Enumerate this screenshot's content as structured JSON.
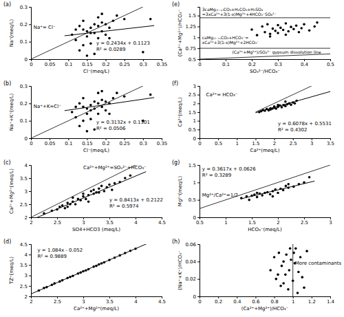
{
  "chart_data": [
    {
      "type": "scatter",
      "title": "(a)",
      "x_label": "Cl⁻(meq/L)",
      "y_label": "Na⁺(meq/L)",
      "color": "#000000",
      "marker": "circle",
      "xlim": [
        0,
        0.35
      ],
      "xticks": [
        0,
        0.05,
        0.1,
        0.15,
        0.2,
        0.25,
        0.3,
        0.35
      ],
      "ylim": [
        0,
        0.3
      ],
      "yticks": [
        0,
        0.1,
        0.2,
        0.3
      ],
      "x": [
        0.11,
        0.12,
        0.13,
        0.13,
        0.14,
        0.14,
        0.15,
        0.15,
        0.16,
        0.16,
        0.17,
        0.17,
        0.18,
        0.18,
        0.19,
        0.19,
        0.2,
        0.2,
        0.21,
        0.22,
        0.23,
        0.12,
        0.14,
        0.16,
        0.17,
        0.19,
        0.21,
        0.25,
        0.3,
        0.32,
        0.15,
        0.18
      ],
      "values": [
        0.14,
        0.11,
        0.19,
        0.05,
        0.17,
        0.22,
        0.13,
        0.02,
        0.18,
        0.09,
        0.2,
        0.15,
        0.24,
        0.12,
        0.16,
        0.26,
        0.14,
        0.2,
        0.18,
        0.22,
        0.25,
        0.17,
        0.08,
        0.15,
        0.03,
        0.21,
        0.12,
        0.23,
        0.04,
        0.23,
        0.16,
        0.19
      ],
      "fit": {
        "slope": 0.2434,
        "intercept": 0.1123,
        "xrange": [
          0.09,
          0.33
        ],
        "equation": "y = 0.2434x + 0.1123",
        "r2": "R² = 0.0289"
      },
      "reference_lines": [
        {
          "label": [
            "Na⁺= Cl⁻"
          ],
          "x": [
            0,
            0.3
          ],
          "y": [
            0,
            0.3
          ]
        }
      ]
    },
    {
      "type": "scatter",
      "title": "(b)",
      "x_label": "Cl⁻(meq/L)",
      "y_label": "Na⁺+K⁺(meq/L)",
      "color": "#000000",
      "marker": "circle",
      "xlim": [
        0,
        0.35
      ],
      "xticks": [
        0,
        0.05,
        0.1,
        0.15,
        0.2,
        0.25,
        0.3,
        0.35
      ],
      "ylim": [
        0,
        0.3
      ],
      "yticks": [
        0,
        0.1,
        0.2,
        0.3
      ],
      "x": [
        0.11,
        0.12,
        0.13,
        0.13,
        0.14,
        0.14,
        0.15,
        0.15,
        0.16,
        0.16,
        0.17,
        0.17,
        0.18,
        0.18,
        0.19,
        0.19,
        0.2,
        0.2,
        0.21,
        0.22,
        0.23,
        0.12,
        0.14,
        0.16,
        0.17,
        0.19,
        0.21,
        0.25,
        0.3,
        0.32,
        0.15,
        0.18
      ],
      "values": [
        0.15,
        0.12,
        0.2,
        0.07,
        0.18,
        0.23,
        0.14,
        0.04,
        0.19,
        0.11,
        0.21,
        0.17,
        0.26,
        0.14,
        0.18,
        0.27,
        0.16,
        0.21,
        0.2,
        0.23,
        0.26,
        0.18,
        0.1,
        0.16,
        0.05,
        0.22,
        0.14,
        0.24,
        0.1,
        0.25,
        0.17,
        0.2
      ],
      "fit": {
        "slope": 0.3132,
        "intercept": 0.1301,
        "xrange": [
          0.09,
          0.33
        ],
        "equation": "y = 0.3132x + 0.1301",
        "r2": "R² = 0.0506"
      },
      "reference_lines": [
        {
          "label": [
            "Na⁺+K=Cl⁻"
          ],
          "x": [
            0,
            0.3
          ],
          "y": [
            0,
            0.3
          ]
        }
      ]
    },
    {
      "type": "scatter",
      "title": "(c)",
      "x_label": "SO4+HCO3 (meq/L)",
      "y_label": "Ca²⁺+Mg²⁺(meq/L)",
      "color": "#000000",
      "marker": "circle",
      "xlim": [
        2,
        4.5
      ],
      "xticks": [
        2,
        2.5,
        3,
        3.5,
        4,
        4.5
      ],
      "ylim": [
        2,
        4
      ],
      "yticks": [
        2,
        2.5,
        3,
        3.5,
        4
      ],
      "x": [
        2.25,
        2.4,
        2.5,
        2.55,
        2.6,
        2.65,
        2.7,
        2.75,
        2.8,
        2.8,
        2.85,
        2.9,
        2.95,
        3.0,
        3.0,
        3.05,
        3.1,
        3.15,
        3.2,
        3.2,
        3.25,
        3.3,
        3.35,
        3.4,
        3.45,
        3.5,
        3.55,
        3.6,
        3.7,
        3.8,
        3.9,
        2.7,
        3.1,
        3.3
      ],
      "values": [
        2.15,
        2.25,
        2.3,
        2.4,
        2.45,
        2.35,
        2.55,
        2.5,
        2.6,
        2.75,
        2.5,
        2.7,
        2.65,
        2.8,
        2.9,
        2.7,
        2.85,
        3.0,
        2.9,
        3.05,
        2.95,
        3.1,
        3.2,
        3.0,
        3.15,
        3.25,
        3.05,
        3.3,
        3.35,
        3.5,
        3.6,
        2.4,
        2.6,
        2.95
      ],
      "fit": {
        "slope": 0.8413,
        "intercept": 0.2122,
        "xrange": [
          2,
          4.2
        ],
        "equation": "y = 0.8413x + 0.2122",
        "r2": "R² = 0.5974"
      },
      "reference_lines": [
        {
          "label": [
            "Ca²⁺+Mg²⁺=SO₄²⁻+HCO₃⁻"
          ],
          "x": [
            2,
            4
          ],
          "y": [
            2,
            4
          ]
        }
      ]
    },
    {
      "type": "scatter",
      "title": "(d)",
      "x_label": "Ca²⁺+Mg²⁺(meq/L)",
      "y_label": "TZ⁺(meq/L)",
      "color": "#000000",
      "marker": "circle",
      "xlim": [
        2,
        4.5
      ],
      "xticks": [
        2,
        2.5,
        3,
        3.5,
        4,
        4.5
      ],
      "ylim": [
        2,
        4.5
      ],
      "yticks": [
        2,
        2.5,
        3,
        3.5,
        4,
        4.5
      ],
      "x": [
        2.15,
        2.25,
        2.3,
        2.4,
        2.45,
        2.55,
        2.6,
        2.7,
        2.75,
        2.8,
        2.9,
        2.95,
        3.0,
        3.05,
        3.1,
        3.2,
        3.25,
        3.3,
        3.35,
        3.4,
        3.5,
        3.6,
        3.7,
        3.8,
        3.9,
        4.0
      ],
      "values": [
        2.28,
        2.4,
        2.44,
        2.55,
        2.62,
        2.71,
        2.77,
        2.88,
        2.93,
        2.98,
        3.09,
        3.14,
        3.2,
        3.24,
        3.3,
        3.42,
        3.46,
        3.53,
        3.58,
        3.63,
        3.74,
        3.85,
        3.96,
        4.07,
        4.18,
        4.28
      ],
      "fit": {
        "slope": 1.084,
        "intercept": -0.052,
        "xrange": [
          2,
          4.4
        ],
        "equation": "y = 1.084x - 0.052",
        "r2": "R² = 0.9889"
      },
      "reference_lines": []
    },
    {
      "type": "scatter",
      "title": "(e)",
      "x_label": "SO₄²⁻/HCO₃⁻",
      "y_label": "(Ca²⁺+Mg²⁺)/HCO₃⁻",
      "color": "#000000",
      "marker": "circle",
      "xlim": [
        0,
        0.5
      ],
      "xticks": [
        0,
        0.1,
        0.2,
        0.3,
        0.4,
        0.5
      ],
      "ylim": [
        0.5,
        1.7
      ],
      "yticks": [
        0.5,
        0.75,
        1,
        1.25,
        1.5
      ],
      "x": [
        0.2,
        0.22,
        0.24,
        0.25,
        0.26,
        0.27,
        0.28,
        0.29,
        0.3,
        0.3,
        0.31,
        0.32,
        0.33,
        0.34,
        0.35,
        0.36,
        0.37,
        0.38,
        0.39,
        0.4,
        0.42,
        0.44,
        0.45,
        0.27,
        0.33
      ],
      "values": [
        1.18,
        1.05,
        1.25,
        1.12,
        1.3,
        1.08,
        1.2,
        1.15,
        1.28,
        1.1,
        1.22,
        1.17,
        1.32,
        1.14,
        1.24,
        1.19,
        1.27,
        1.12,
        1.21,
        1.3,
        1.16,
        1.25,
        1.34,
        1.02,
        1.06
      ],
      "reference_lines": [
        {
          "label": [
            "3caMg₍₁₋ₓ₎CO₃+H₂CO₃+H₂SO₄",
            "=3xCa²⁺+3(1-x)Mg²⁺+4HCO₃⁻SO₄²⁻"
          ],
          "x": [
            0,
            0.5
          ],
          "y": [
            1.45,
            1.45
          ]
        },
        {
          "label": [
            "caMg₍₁₋ₓ₎CO₃+HCO₃⁻=",
            "xCa²⁺+3(1-x)Mg²⁺+2HCO₃⁻"
          ],
          "x": [
            0,
            0.5
          ],
          "y": [
            0.75,
            0.75
          ]
        },
        {
          "label": [
            "(Ca²⁺+Mg²⁺)/SO₄²⁻ gypsum dissolution line"
          ],
          "x": [
            0,
            0.5
          ],
          "y": [
            0.5,
            0.62
          ]
        }
      ]
    },
    {
      "type": "scatter",
      "title": "(f)",
      "x_label": "Ca²⁺(meq/L)",
      "y_label": "Ca²⁺(meq/L)",
      "color": "#000000",
      "marker": "circle",
      "xlim": [
        0,
        3.5
      ],
      "xticks": [
        0,
        0.5,
        1,
        1.5,
        2,
        2.5,
        3,
        3.5
      ],
      "ylim": [
        0,
        3
      ],
      "yticks": [
        0,
        0.5,
        1,
        1.5,
        2,
        2.5,
        3
      ],
      "x": [
        1.6,
        1.65,
        1.7,
        1.75,
        1.8,
        1.85,
        1.9,
        1.95,
        2.0,
        2.0,
        2.05,
        2.1,
        2.15,
        2.2,
        2.25,
        2.3,
        2.35,
        2.4,
        2.45,
        2.5,
        2.55,
        2.6,
        1.9,
        2.1,
        2.3
      ],
      "values": [
        1.5,
        1.55,
        1.62,
        1.58,
        1.68,
        1.6,
        1.72,
        1.7,
        1.75,
        1.82,
        1.7,
        1.8,
        1.88,
        1.78,
        1.9,
        1.85,
        1.95,
        2.0,
        1.92,
        2.05,
        2.0,
        2.15,
        1.65,
        1.9,
        2.1
      ],
      "fit": {
        "slope": 0.6078,
        "intercept": 0.5531,
        "xrange": [
          1.5,
          3.5
        ],
        "equation": "y = 0.6078x + 0.5531",
        "r2": "R² = 0.4302"
      },
      "reference_lines": [
        {
          "label": [
            "Ca²⁺= HCO₃⁻"
          ],
          "x": [
            1.5,
            3
          ],
          "y": [
            1.5,
            3
          ]
        }
      ]
    },
    {
      "type": "scatter",
      "title": "(g)",
      "x_label": "HCO₃⁻(meq/L)",
      "y_label": "Mg²⁺(meq/L)",
      "color": "#000000",
      "marker": "circle",
      "xlim": [
        0.5,
        3
      ],
      "xticks": [
        0.5,
        1,
        1.5,
        2,
        2.5,
        3
      ],
      "ylim": [
        0,
        1.5
      ],
      "yticks": [
        0,
        0.5,
        1,
        1.5
      ],
      "x": [
        1.3,
        1.4,
        1.45,
        1.5,
        1.55,
        1.6,
        1.65,
        1.7,
        1.75,
        1.8,
        1.85,
        1.9,
        1.95,
        2.0,
        2.05,
        2.1,
        2.15,
        2.2,
        2.3,
        2.4,
        2.5,
        2.6,
        1.6,
        1.9,
        2.2
      ],
      "values": [
        0.55,
        0.6,
        0.5,
        0.62,
        0.65,
        0.58,
        0.68,
        0.63,
        0.7,
        0.72,
        0.66,
        0.75,
        0.8,
        0.7,
        0.82,
        0.78,
        0.9,
        0.85,
        0.88,
        0.95,
        1.0,
        1.15,
        0.7,
        0.6,
        0.95
      ],
      "fit": {
        "slope": 0.3617,
        "intercept": 0.0626,
        "xrange": [
          1.3,
          2.7
        ],
        "equation": "y = 0.3617x + 0.0626",
        "r2": "R² = 0.3289"
      },
      "reference_lines": [
        {
          "label": [
            "Mg²⁺/Ca²⁺=1/2"
          ],
          "x": [
            0.5,
            3
          ],
          "y": [
            0.25,
            1.5
          ]
        }
      ]
    },
    {
      "type": "scatter",
      "title": "(h)",
      "x_label": "(Ca²⁺+Mg²⁺)/HCO₃⁻",
      "y_label": "(Na⁺+K⁺)/HCO₃⁻",
      "color": "#000000",
      "marker": "circle",
      "xlim": [
        0,
        1.4
      ],
      "xticks": [
        0,
        0.2,
        0.4,
        0.6,
        0.8,
        1,
        1.2,
        1.4
      ],
      "ylim": [
        0,
        0.06
      ],
      "yticks": [
        0,
        0.02,
        0.04,
        0.06
      ],
      "x": [
        0.76,
        0.8,
        0.82,
        0.85,
        0.87,
        0.88,
        0.9,
        0.92,
        0.93,
        0.95,
        0.96,
        0.98,
        1.0,
        1.01,
        1.03,
        1.05,
        1.06,
        1.08,
        1.1,
        1.12,
        1.15,
        0.9,
        0.97,
        1.02,
        0.84
      ],
      "values": [
        0.03,
        0.045,
        0.02,
        0.05,
        0.012,
        0.035,
        0.04,
        0.025,
        0.048,
        0.008,
        0.03,
        0.042,
        0.018,
        0.05,
        0.055,
        0.004,
        0.028,
        0.045,
        0.022,
        0.01,
        0.052,
        0.015,
        0.055,
        0.038,
        0.025
      ],
      "reference_lines": [
        {
          "x": [
            1,
            1
          ],
          "y": [
            0,
            0.06
          ]
        }
      ],
      "annotations": [
        "More contaminants"
      ]
    }
  ]
}
